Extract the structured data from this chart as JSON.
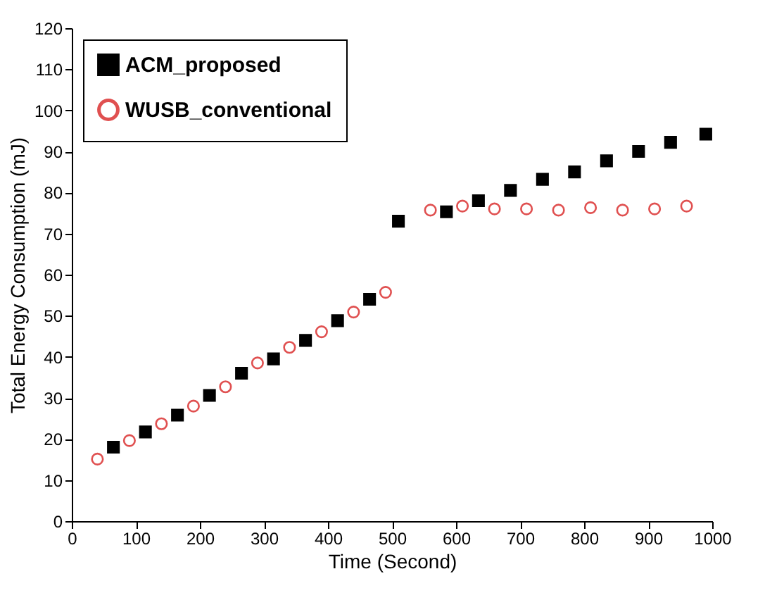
{
  "chart_data": {
    "type": "scatter",
    "xlabel": "Time (Second)",
    "ylabel": "Total Energy Consumption (mJ)",
    "xlim": [
      0,
      1000
    ],
    "xticks": [
      0,
      100,
      200,
      300,
      400,
      500,
      600,
      700,
      800,
      900,
      1000
    ],
    "ylim": [
      0,
      120
    ],
    "yticks": [
      0,
      10,
      20,
      30,
      40,
      50,
      60,
      70,
      80,
      90,
      100,
      110,
      120
    ],
    "legend": "top left",
    "series": [
      {
        "name": "ACM_proposed",
        "color": "#000000",
        "marker": "square",
        "x": [
          65,
          115,
          165,
          215,
          265,
          315,
          365,
          415,
          465,
          510,
          585,
          635,
          685,
          735,
          785,
          835,
          885,
          935,
          990
        ],
        "values": [
          18,
          21.7,
          25.8,
          30.6,
          36,
          39.5,
          44,
          48.8,
          54,
          73,
          75.3,
          78,
          80.5,
          83.2,
          85,
          87.7,
          90,
          92.2,
          94.2
        ]
      },
      {
        "name": "WUSB_conventional",
        "color": "#e05050",
        "marker": "circle",
        "x": [
          40,
          90,
          140,
          190,
          240,
          290,
          340,
          390,
          440,
          490,
          560,
          610,
          660,
          710,
          760,
          810,
          860,
          910,
          960
        ],
        "values": [
          15.1,
          19.6,
          23.7,
          28,
          32.7,
          38.5,
          42.3,
          46.1,
          50.9,
          55.7,
          75.7,
          76.7,
          76,
          76,
          75.7,
          76.3,
          75.7,
          76,
          76.7
        ]
      }
    ]
  }
}
